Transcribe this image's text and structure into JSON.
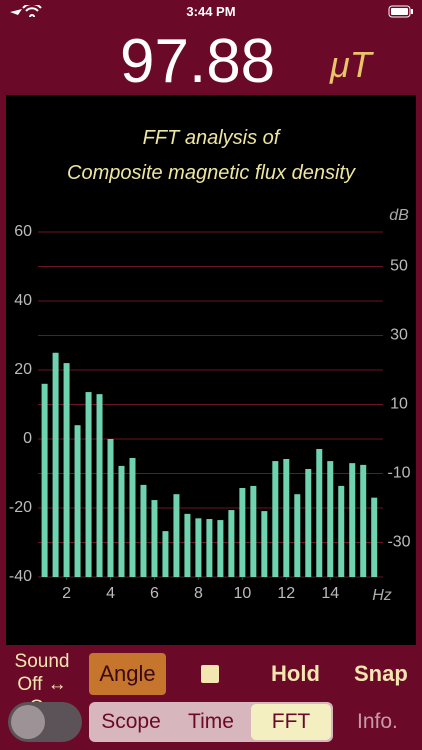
{
  "status_bar": {
    "time": "3:44 PM"
  },
  "reading": {
    "value": "97.88",
    "unit": "μT"
  },
  "chart_data": {
    "type": "bar",
    "title": "FFT analysis of",
    "subtitle": "Composite magnetic flux density",
    "x_label": "Hz",
    "y2_label": "dB",
    "x": [
      1,
      1.5,
      2,
      2.5,
      3,
      3.5,
      4,
      4.5,
      5,
      5.5,
      6,
      6.5,
      7,
      7.5,
      8,
      8.5,
      9,
      9.5,
      10,
      10.5,
      11,
      11.5,
      12,
      12.5,
      13,
      13.5,
      14,
      14.5,
      15,
      15.5,
      16
    ],
    "values": [
      16,
      25,
      22,
      4,
      13.6,
      13,
      0,
      -7.8,
      -5.5,
      -13.3,
      -17.7,
      -26.7,
      -16,
      -21.7,
      -23,
      -23.2,
      -23.5,
      -20.6,
      -14.2,
      -13.6,
      -20.9,
      -6.4,
      -5.8,
      -16,
      -8.7,
      -2.9,
      -6.4,
      -13.6,
      -7,
      -7.5,
      -17
    ],
    "color": "#6fd3b0",
    "xlim": [
      0.7,
      16.4
    ],
    "xticks": [
      2,
      4,
      6,
      8,
      10,
      12,
      14
    ],
    "ylim": [
      -40,
      60
    ],
    "yticks": [
      -40,
      -20,
      0,
      20,
      40,
      60
    ],
    "y2lim": [
      -40,
      60
    ],
    "y2ticks": [
      -30,
      -10,
      10,
      30,
      50
    ],
    "grid": true
  },
  "controls": {
    "sound_label": "Sound",
    "sound_state": "Off ↔ On",
    "angle": "Angle",
    "hold": "Hold",
    "snap": "Snap",
    "tabs": [
      "Scope",
      "Time",
      "FFT"
    ],
    "info": "Info."
  }
}
